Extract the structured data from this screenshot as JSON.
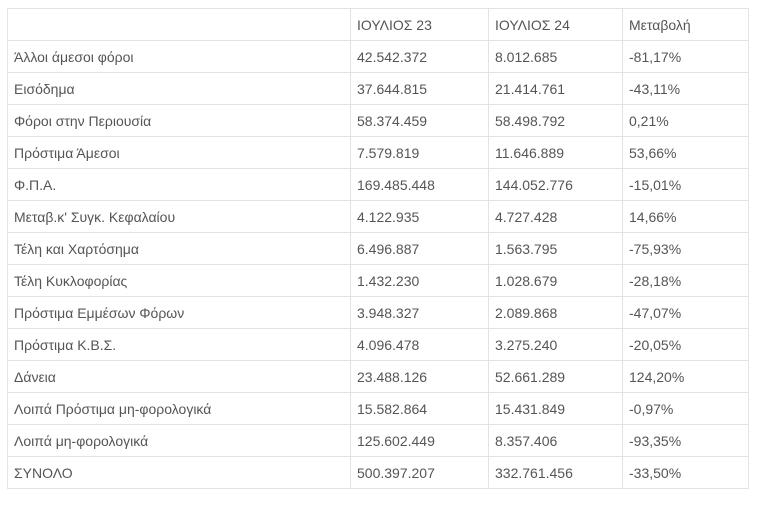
{
  "table": {
    "headers": [
      "",
      "ΙΟΥΛΙΟΣ 23",
      "ΙΟΥΛΙΟΣ 24",
      "Μεταβολή"
    ],
    "rows": [
      [
        "Άλλοι άμεσοι φόροι",
        "42.542.372",
        "8.012.685",
        "-81,17%"
      ],
      [
        "Εισόδημα",
        "37.644.815",
        "21.414.761",
        "-43,11%"
      ],
      [
        "Φόροι στην Περιουσία",
        "58.374.459",
        "58.498.792",
        "0,21%"
      ],
      [
        "Πρόστιμα Άμεσοι",
        "7.579.819",
        "11.646.889",
        "53,66%"
      ],
      [
        "Φ.Π.Α.",
        "169.485.448",
        "144.052.776",
        "-15,01%"
      ],
      [
        "Μεταβ.κ' Συγκ. Κεφαλαίου",
        "4.122.935",
        "4.727.428",
        "14,66%"
      ],
      [
        "Τέλη και Χαρτόσημα",
        "6.496.887",
        "1.563.795",
        "-75,93%"
      ],
      [
        "Τέλη Κυκλοφορίας",
        "1.432.230",
        "1.028.679",
        "-28,18%"
      ],
      [
        "Πρόστιμα Εμμέσων Φόρων",
        "3.948.327",
        "2.089.868",
        "-47,07%"
      ],
      [
        "Πρόστιμα Κ.Β.Σ.",
        "4.096.478",
        "3.275.240",
        "-20,05%"
      ],
      [
        "Δάνεια",
        "23.488.126",
        "52.661.289",
        "124,20%"
      ],
      [
        "Λοιπά Πρόστιμα μη-φορολογικά",
        "15.582.864",
        "15.431.849",
        "-0,97%"
      ],
      [
        "Λοιπά μη-φορολογικά",
        "125.602.449",
        "8.357.406",
        "-93,35%"
      ],
      [
        "ΣΥΝΟΛΟ",
        "500.397.207",
        "332.761.456",
        "-33,50%"
      ]
    ]
  }
}
